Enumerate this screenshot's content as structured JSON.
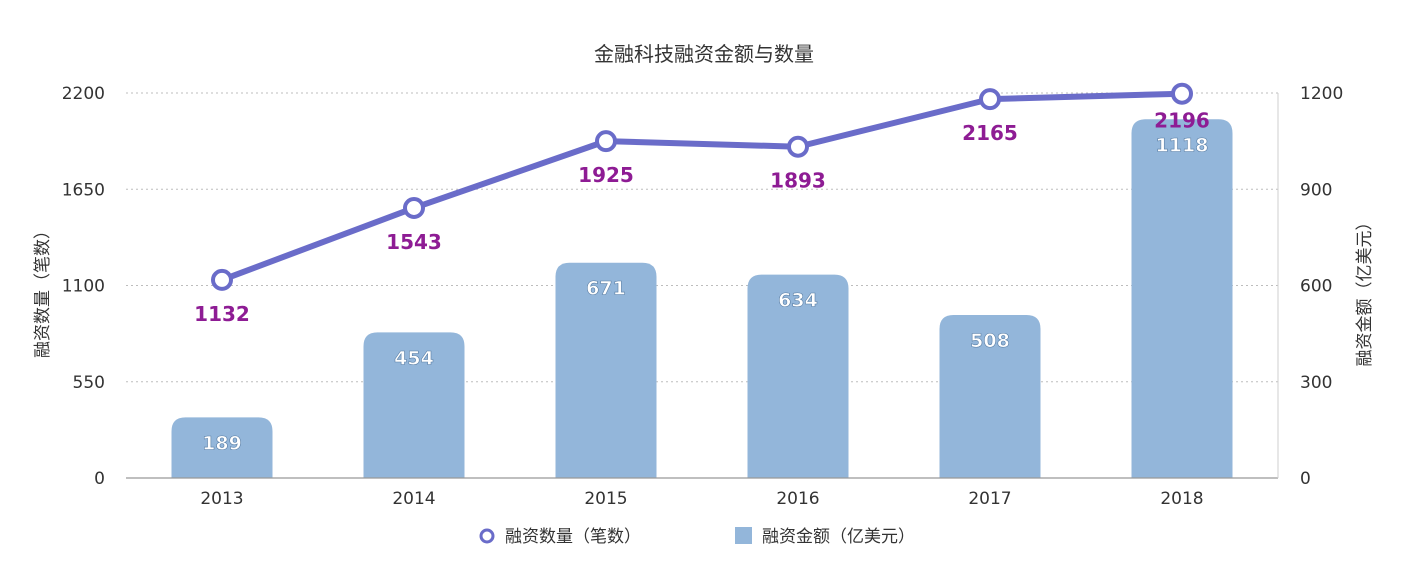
{
  "chart_data": {
    "type": "bar",
    "title": "金融科技融资金额与数量",
    "categories": [
      "2013",
      "2014",
      "2015",
      "2016",
      "2017",
      "2018"
    ],
    "series": [
      {
        "name": "融资数量（笔数）",
        "type": "line",
        "axis": "left",
        "values": [
          1132,
          1543,
          1925,
          1893,
          2165,
          2196
        ]
      },
      {
        "name": "融资金额（亿美元）",
        "type": "bar",
        "axis": "right",
        "values": [
          189,
          454,
          671,
          634,
          508,
          1118
        ]
      }
    ],
    "ylabel_left": "融资数量（笔数）",
    "ylabel_right": "融资金额（亿美元）",
    "ylim_left": [
      0,
      2200
    ],
    "ylim_right": [
      0,
      1200
    ],
    "yticks_left": [
      "0",
      "550",
      "1100",
      "1650",
      "2200"
    ],
    "yticks_right": [
      "0",
      "300",
      "600",
      "900",
      "1200"
    ],
    "grid": true,
    "legend_position": "bottom",
    "colors": {
      "bar": "#93b6da",
      "line": "#6a6cc9",
      "line_label": "#8e1c94",
      "bar_label": "#ffffff"
    }
  }
}
